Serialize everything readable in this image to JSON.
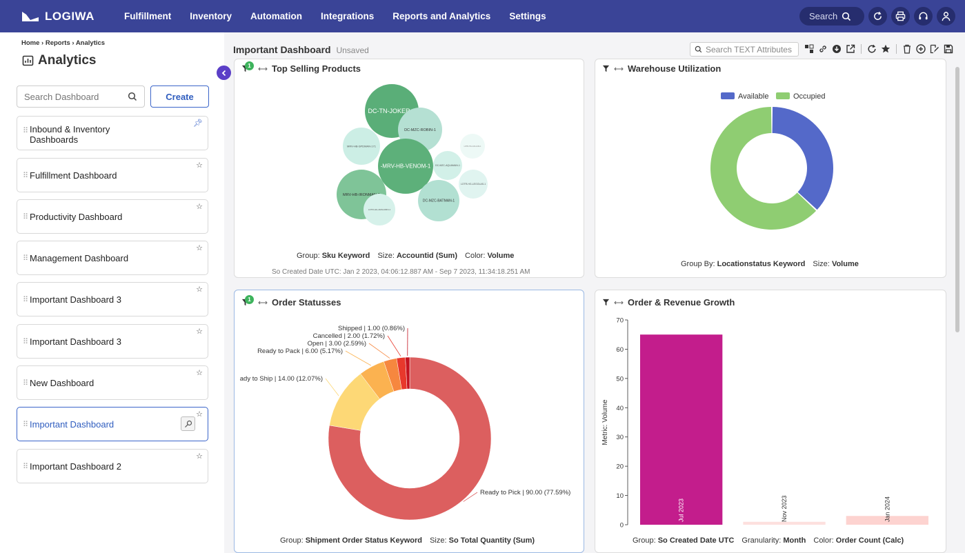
{
  "topbar": {
    "logo": "LOGIWA",
    "nav": [
      "Fulfillment",
      "Inventory",
      "Automation",
      "Integrations",
      "Reports and Analytics",
      "Settings"
    ],
    "search_label": "Search"
  },
  "sidebar": {
    "breadcrumb": "Home › Reports › Analytics",
    "title": "Analytics",
    "search_placeholder": "Search Dashboard",
    "create_label": "Create",
    "items": [
      {
        "label": "Inbound & Inventory Dashboards"
      },
      {
        "label": "Fulfillment Dashboard"
      },
      {
        "label": "Productivity Dashboard"
      },
      {
        "label": "Management Dashboard"
      },
      {
        "label": "Important Dashboard 3"
      },
      {
        "label": "Important Dashboard 3"
      },
      {
        "label": "New Dashboard"
      },
      {
        "label": "Important Dashboard"
      },
      {
        "label": "Important Dashboard 2"
      }
    ]
  },
  "dashboard": {
    "title": "Important Dashboard",
    "status": "Unsaved",
    "attr_search_placeholder": "Search TEXT Attributes"
  },
  "cards": {
    "top_selling": {
      "title": "Top Selling Products",
      "badge": "1",
      "footer": {
        "k1": "Group:",
        "v1": "Sku Keyword",
        "k2": "Size:",
        "v2": "Accountid (Sum)",
        "k3": "Color:",
        "v3": "Volume"
      },
      "subfooter": "So Created Date UTC: Jan 2 2023, 04:06:12.887 AM - Sep 7 2023, 11:34:18.251 AM",
      "bubbles": [
        "DC-TN-JOKER-1",
        "DC-MZC-ROBIN-1",
        "MRV-HB-SPDMAN-171",
        "-MRV-HB-VENOM-1",
        "DC-MZC-AQUAMAN-1",
        "LOTR-HG-LEGOLAS-1",
        "MRV-HB-IRONMAN-1",
        "DC-MZC-BATMAN-1",
        "LOTR-HG-ARAGORN-1",
        "LOTR-HG-GOLLUM-1"
      ]
    },
    "warehouse": {
      "title": "Warehouse Utilization",
      "legend": [
        "Available",
        "Occupied"
      ],
      "footer": {
        "k1": "Group By:",
        "v1": "Locationstatus Keyword",
        "k2": "Size:",
        "v2": "Volume"
      }
    },
    "order_statuses": {
      "title": "Order Statusses",
      "badge": "1",
      "footer": {
        "k1": "Group:",
        "v1": "Shipment Order Status Keyword",
        "k2": "Size:",
        "v2": "So Total Quantity (Sum)"
      }
    },
    "revenue": {
      "title": "Order & Revenue Growth",
      "footer": {
        "k1": "Group:",
        "v1": "So Created Date UTC",
        "k2": "Granularity:",
        "v2": "Month",
        "k3": "Color:",
        "v3": "Order Count (Calc)"
      }
    }
  },
  "chart_data": [
    {
      "type": "pie",
      "title": "Warehouse Utilization",
      "categories": [
        "Available",
        "Occupied"
      ],
      "values": [
        37,
        63
      ],
      "colors": [
        "#5469c9",
        "#8fcd72"
      ],
      "legend": "top"
    },
    {
      "type": "pie",
      "title": "Order Statusses",
      "categories": [
        "Ready to Pick",
        "Ready to Ship",
        "Ready to Pack",
        "Open",
        "Cancelled",
        "Shipped"
      ],
      "values": [
        90.0,
        14.0,
        6.0,
        3.0,
        2.0,
        1.0
      ],
      "labels": [
        "Ready to Pick | 90.00 (77.59%)",
        "ady to Ship | 14.00 (12.07%)",
        "Ready to Pack | 6.00 (5.17%)",
        "Open | 3.00 (2.59%)",
        "Cancelled | 2.00 (1.72%)",
        "Shipped | 1.00 (0.86%)"
      ],
      "colors": [
        "#dc5f5f",
        "#fdd876",
        "#fbb250",
        "#f6873f",
        "#e8382c",
        "#c41320"
      ]
    },
    {
      "type": "bar",
      "title": "Order & Revenue Growth",
      "categories": [
        "Jul 2023",
        "Nov 2023",
        "Jan 2024"
      ],
      "values": [
        65,
        1,
        3
      ],
      "colors": [
        "#c31d8c",
        "#fde0de",
        "#fdd3d0"
      ],
      "ylabel": "Metric: Volume",
      "ylim": [
        0,
        70
      ],
      "yticks": [
        0,
        10,
        20,
        30,
        40,
        50,
        60,
        70
      ]
    }
  ]
}
